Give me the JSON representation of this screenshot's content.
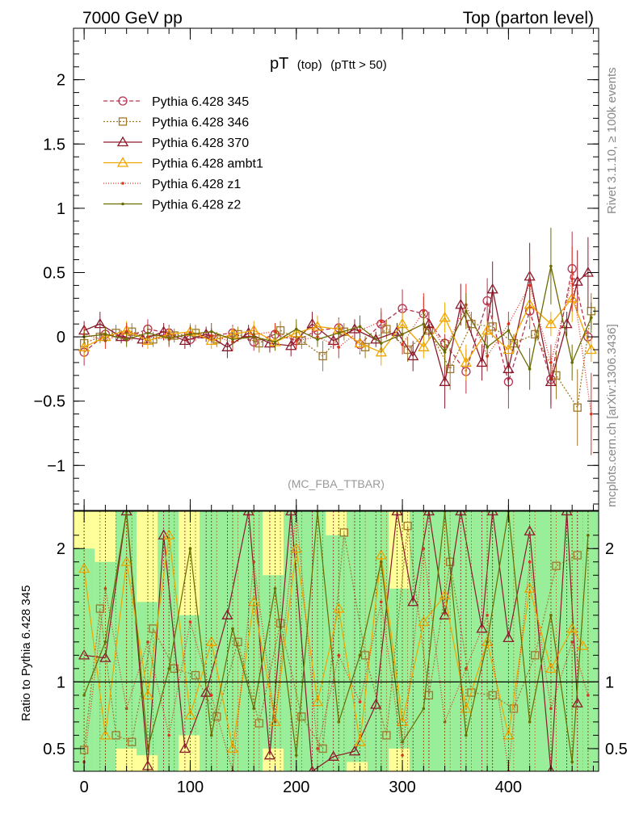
{
  "header": {
    "left": "7000 GeV pp",
    "right": "Top (parton level)"
  },
  "side_labels": {
    "rivet": "Rivet 3.1.10, ≥ 100k events",
    "mcplots": "mcplots.cern.ch [arXiv:1306.3436]"
  },
  "chart_data": [
    {
      "type": "line",
      "panel": "main",
      "title": "pT",
      "title_sub": "(top)",
      "title_cut": "(pTtt > 50)",
      "watermark": "(MC_FBA_TTBAR)",
      "xlim": [
        -10,
        485
      ],
      "ylim": [
        -1.35,
        2.4
      ],
      "yticks": [
        -1,
        -0.5,
        0,
        0.5,
        1,
        1.5,
        2
      ],
      "ytick_labels": [
        "−1",
        "−0.5",
        "0",
        "0.5",
        "1",
        "1.5",
        "2"
      ],
      "legend_position": "top-left",
      "series": [
        {
          "name": "Pythia 6.428 345",
          "color": "#b5344f",
          "marker": "circle",
          "dash": "5,3",
          "x": [
            0,
            20,
            40,
            60,
            80,
            100,
            120,
            140,
            160,
            180,
            200,
            220,
            240,
            260,
            280,
            300,
            320,
            340,
            360,
            380,
            400,
            420,
            440,
            460,
            475
          ],
          "y": [
            -0.12,
            0.02,
            0.0,
            0.06,
            0.03,
            -0.02,
            0.01,
            0.03,
            -0.04,
            0.02,
            -0.03,
            0.05,
            0.07,
            -0.06,
            0.1,
            0.22,
            0.18,
            -0.05,
            -0.27,
            0.28,
            -0.35,
            0.2,
            -0.33,
            0.53,
            0.0
          ]
        },
        {
          "name": "Pythia 6.428 346",
          "color": "#a0782a",
          "marker": "square",
          "dash": "2,2",
          "x": [
            0,
            15,
            30,
            45,
            65,
            85,
            105,
            125,
            145,
            165,
            185,
            205,
            225,
            245,
            265,
            285,
            305,
            325,
            345,
            365,
            385,
            405,
            425,
            445,
            465,
            478
          ],
          "y": [
            -0.05,
            0.0,
            0.03,
            0.04,
            -0.02,
            0.01,
            0.03,
            -0.02,
            0.02,
            -0.05,
            0.05,
            -0.03,
            -0.15,
            0.04,
            -0.08,
            0.06,
            -0.1,
            0.05,
            -0.25,
            0.1,
            0.08,
            -0.05,
            0.02,
            -0.3,
            -0.55,
            0.2
          ]
        },
        {
          "name": "Pythia 6.428 370",
          "color": "#8b1a2b",
          "marker": "triangle",
          "dash": "",
          "x": [
            0,
            15,
            35,
            55,
            75,
            95,
            115,
            135,
            155,
            175,
            195,
            215,
            235,
            255,
            275,
            295,
            310,
            325,
            340,
            355,
            375,
            385,
            400,
            420,
            440,
            455,
            465,
            475
          ],
          "y": [
            0.05,
            0.1,
            0.0,
            -0.02,
            0.04,
            -0.03,
            0.02,
            -0.08,
            0.03,
            -0.05,
            -0.07,
            0.1,
            -0.03,
            0.06,
            -0.02,
            0.04,
            -0.15,
            0.1,
            -0.35,
            0.25,
            -0.2,
            0.37,
            -0.25,
            0.47,
            -0.35,
            0.1,
            0.43,
            0.5
          ]
        },
        {
          "name": "Pythia 6.428 ambt1",
          "color": "#f0a500",
          "marker": "triangle",
          "dash": "",
          "x": [
            0,
            20,
            40,
            60,
            80,
            100,
            120,
            140,
            160,
            180,
            200,
            220,
            240,
            260,
            280,
            300,
            320,
            340,
            360,
            380,
            400,
            420,
            440,
            460,
            478
          ],
          "y": [
            -0.08,
            0.0,
            0.05,
            -0.03,
            0.02,
            0.04,
            -0.03,
            0.02,
            0.05,
            -0.04,
            0.03,
            0.08,
            0.06,
            -0.05,
            -0.12,
            0.1,
            -0.08,
            0.15,
            -0.2,
            0.05,
            -0.1,
            0.25,
            0.1,
            0.3,
            -0.1
          ]
        },
        {
          "name": "Pythia 6.428 z1",
          "color": "#e03020",
          "marker": "dot",
          "dash": "1,2",
          "x": [
            0,
            20,
            40,
            60,
            80,
            100,
            120,
            140,
            160,
            180,
            200,
            220,
            240,
            260,
            280,
            300,
            320,
            340,
            360,
            380,
            400,
            420,
            440,
            460,
            478
          ],
          "y": [
            0.02,
            -0.03,
            0.04,
            0.0,
            -0.02,
            0.03,
            0.01,
            -0.04,
            0.02,
            0.04,
            -0.03,
            0.0,
            -0.08,
            0.05,
            0.12,
            -0.06,
            0.2,
            -0.1,
            0.25,
            -0.15,
            0.1,
            0.4,
            -0.2,
            0.45,
            -0.6
          ]
        },
        {
          "name": "Pythia 6.428 z2",
          "color": "#6b6b00",
          "marker": "dot",
          "dash": "",
          "x": [
            0,
            20,
            40,
            60,
            80,
            100,
            120,
            140,
            160,
            180,
            200,
            220,
            240,
            260,
            280,
            300,
            320,
            340,
            360,
            380,
            400,
            420,
            440,
            460,
            478
          ],
          "y": [
            0.0,
            0.02,
            -0.02,
            0.03,
            -0.01,
            0.02,
            0.04,
            -0.02,
            0.0,
            -0.04,
            0.06,
            -0.02,
            0.03,
            0.08,
            -0.05,
            0.02,
            0.1,
            -0.12,
            0.2,
            -0.08,
            0.05,
            -0.25,
            0.55,
            -0.2,
            0.15
          ]
        }
      ]
    },
    {
      "type": "line",
      "panel": "ratio",
      "ylabel": "Ratio to Pythia 6.428 345",
      "xlim": [
        -10,
        485
      ],
      "ylim": [
        0.33,
        2.28
      ],
      "yticks": [
        0.5,
        1,
        2
      ],
      "ytick_labels": [
        "0.5",
        "1",
        "2"
      ],
      "xticks": [
        0,
        100,
        200,
        300,
        400
      ],
      "xtick_labels": [
        "0",
        "100",
        "200",
        "300",
        "400"
      ],
      "reference_line": 1,
      "band_upper_green": [
        2.0,
        1.9,
        2.28,
        1.6,
        2.28,
        1.5,
        2.28,
        2.28,
        2.28,
        1.8,
        2.28,
        2.28,
        2.1,
        2.28,
        2.28,
        1.7,
        2.28,
        2.28,
        2.28,
        2.28,
        2.28,
        2.28,
        2.28,
        2.28,
        2.28
      ],
      "band_lower_green": [
        0.33,
        0.33,
        0.5,
        0.45,
        0.33,
        0.6,
        0.33,
        0.33,
        0.33,
        0.5,
        0.33,
        0.33,
        0.33,
        0.4,
        0.33,
        0.5,
        0.33,
        0.33,
        0.33,
        0.33,
        0.33,
        0.33,
        0.33,
        0.33,
        0.33
      ],
      "series": [
        {
          "name": "Pythia 6.428 346",
          "x": [
            0,
            15,
            30,
            45,
            65,
            85,
            105,
            125,
            145,
            165,
            185,
            205,
            225,
            245,
            265,
            285,
            305,
            325,
            345,
            365,
            385,
            405,
            425,
            445,
            465
          ],
          "y": [
            0.49,
            1.55,
            0.6,
            0.55,
            1.4,
            1.1,
            1.05,
            0.74,
            1.3,
            0.69,
            1.44,
            0.74,
            0.5,
            2.12,
            1.2,
            0.6,
            2.17,
            0.9,
            1.9,
            0.92,
            0.9,
            0.8,
            1.2,
            1.87,
            1.95
          ]
        },
        {
          "name": "Pythia 6.428 370",
          "x": [
            0,
            20,
            40,
            60,
            75,
            95,
            115,
            135,
            155,
            175,
            195,
            215,
            235,
            255,
            275,
            295,
            310,
            325,
            340,
            355,
            375,
            385,
            400,
            420,
            440,
            455,
            465
          ],
          "y": [
            1.2,
            1.18,
            2.28,
            0.37,
            2.1,
            0.5,
            0.92,
            1.5,
            2.28,
            0.45,
            2.28,
            0.33,
            0.44,
            0.48,
            0.83,
            2.28,
            1.6,
            2.28,
            1.5,
            2.28,
            1.4,
            2.28,
            1.33,
            2.13,
            0.33,
            2.28,
            0.84
          ]
        },
        {
          "name": "Pythia 6.428 ambt1",
          "x": [
            0,
            20,
            40,
            60,
            80,
            100,
            120,
            140,
            160,
            180,
            200,
            220,
            240,
            260,
            280,
            300,
            320,
            340,
            360,
            380,
            400,
            420,
            440,
            460,
            470
          ],
          "y": [
            1.85,
            0.6,
            1.9,
            0.9,
            2.1,
            0.75,
            1.3,
            0.5,
            1.6,
            0.7,
            2.0,
            0.85,
            1.55,
            0.55,
            1.95,
            0.7,
            1.45,
            1.65,
            0.8,
            1.3,
            0.6,
            1.7,
            1.1,
            1.4,
            1.27
          ]
        },
        {
          "name": "Pythia 6.428 z1",
          "x": [
            0,
            20,
            40,
            60,
            80,
            100,
            120,
            140,
            160,
            180,
            200,
            220,
            240,
            260,
            280,
            300,
            320,
            340,
            360,
            380,
            400,
            420,
            440,
            460,
            475
          ],
          "y": [
            0.4,
            1.7,
            0.8,
            1.3,
            0.6,
            1.45,
            0.9,
            0.33,
            1.9,
            0.7,
            2.28,
            0.5,
            1.2,
            0.85,
            1.6,
            0.45,
            2.0,
            0.7,
            1.1,
            1.5,
            0.33,
            1.9,
            0.8,
            1.3,
            0.9
          ]
        },
        {
          "name": "Pythia 6.428 z2",
          "x": [
            0,
            20,
            40,
            60,
            80,
            100,
            120,
            140,
            160,
            180,
            200,
            220,
            240,
            260,
            280,
            300,
            320,
            340,
            360,
            380,
            400,
            420,
            440,
            460,
            475
          ],
          "y": [
            0.9,
            1.3,
            2.28,
            0.5,
            1.1,
            2.0,
            0.6,
            1.4,
            0.8,
            1.7,
            0.45,
            2.28,
            0.7,
            1.2,
            1.9,
            0.55,
            0.8,
            2.28,
            0.6,
            1.3,
            2.28,
            0.7,
            1.5,
            0.4,
            2.1
          ]
        }
      ]
    }
  ]
}
